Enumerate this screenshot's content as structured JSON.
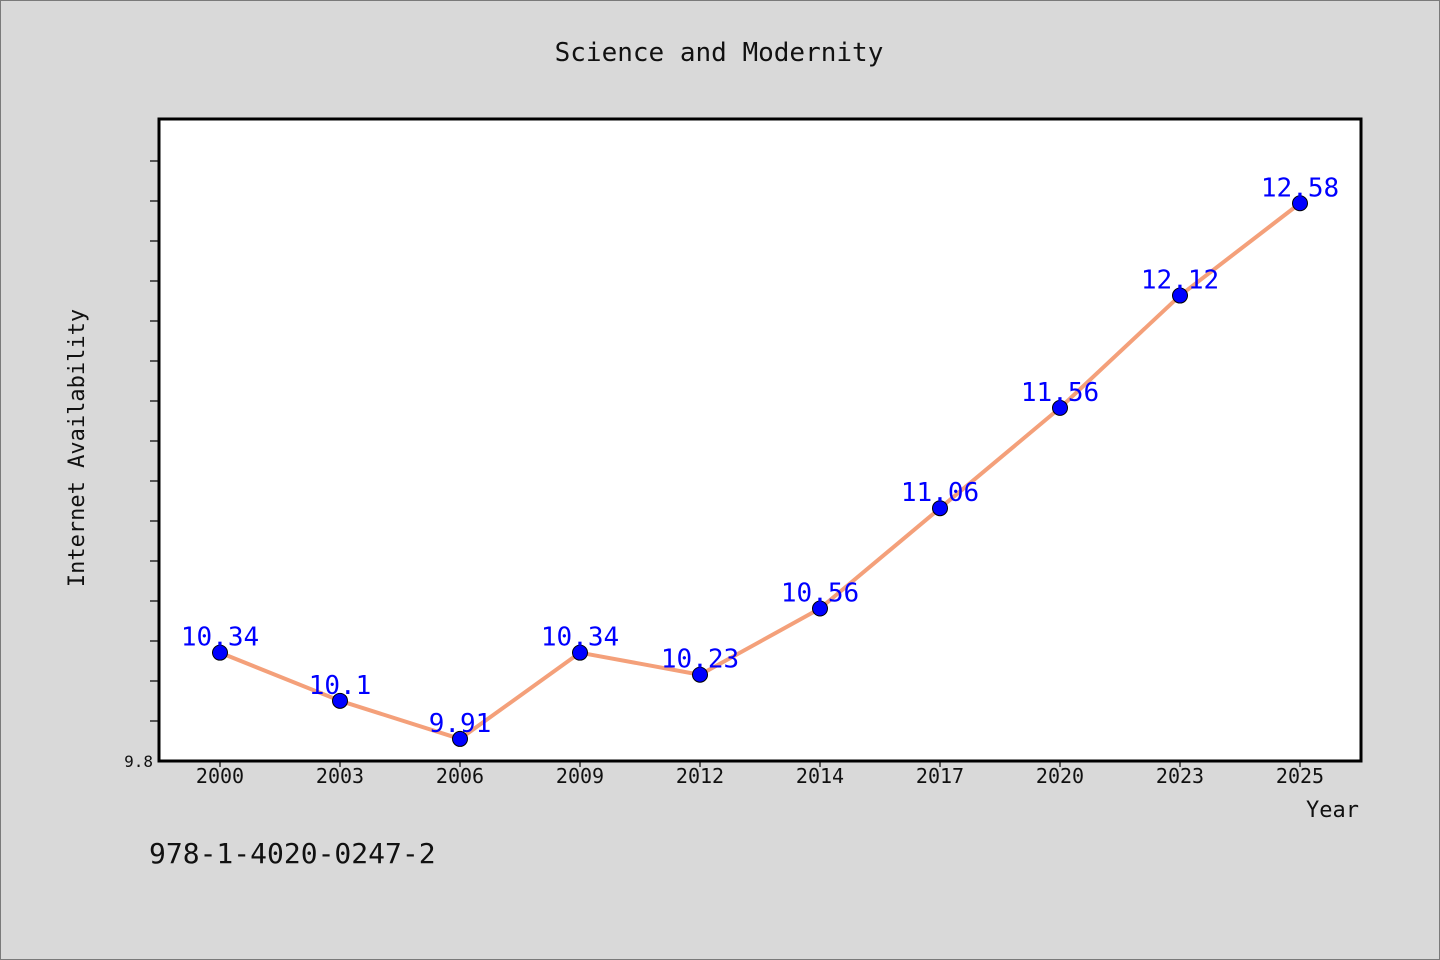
{
  "chart_data": {
    "type": "line",
    "title": "Science and Modernity",
    "xlabel": "Year",
    "ylabel": "Internet Availability",
    "categories": [
      "2000",
      "2003",
      "2006",
      "2009",
      "2012",
      "2014",
      "2017",
      "2020",
      "2023",
      "2025"
    ],
    "series": [
      {
        "values": [
          10.34,
          10.1,
          9.91,
          10.34,
          10.23,
          10.56,
          11.06,
          11.56,
          12.12,
          12.58
        ],
        "line_color": "#f4a07a",
        "marker_color": "#0000ff"
      }
    ],
    "ylim": [
      9.8,
      13.0
    ],
    "ytick_label": "9.8",
    "data_labels": [
      "10.34",
      "10.1",
      "9.91",
      "10.34",
      "10.23",
      "10.56",
      "11.06",
      "11.56",
      "12.12",
      "12.58"
    ],
    "grid": false,
    "legend": false
  },
  "footer": {
    "isbn": "978-1-4020-0247-2"
  }
}
